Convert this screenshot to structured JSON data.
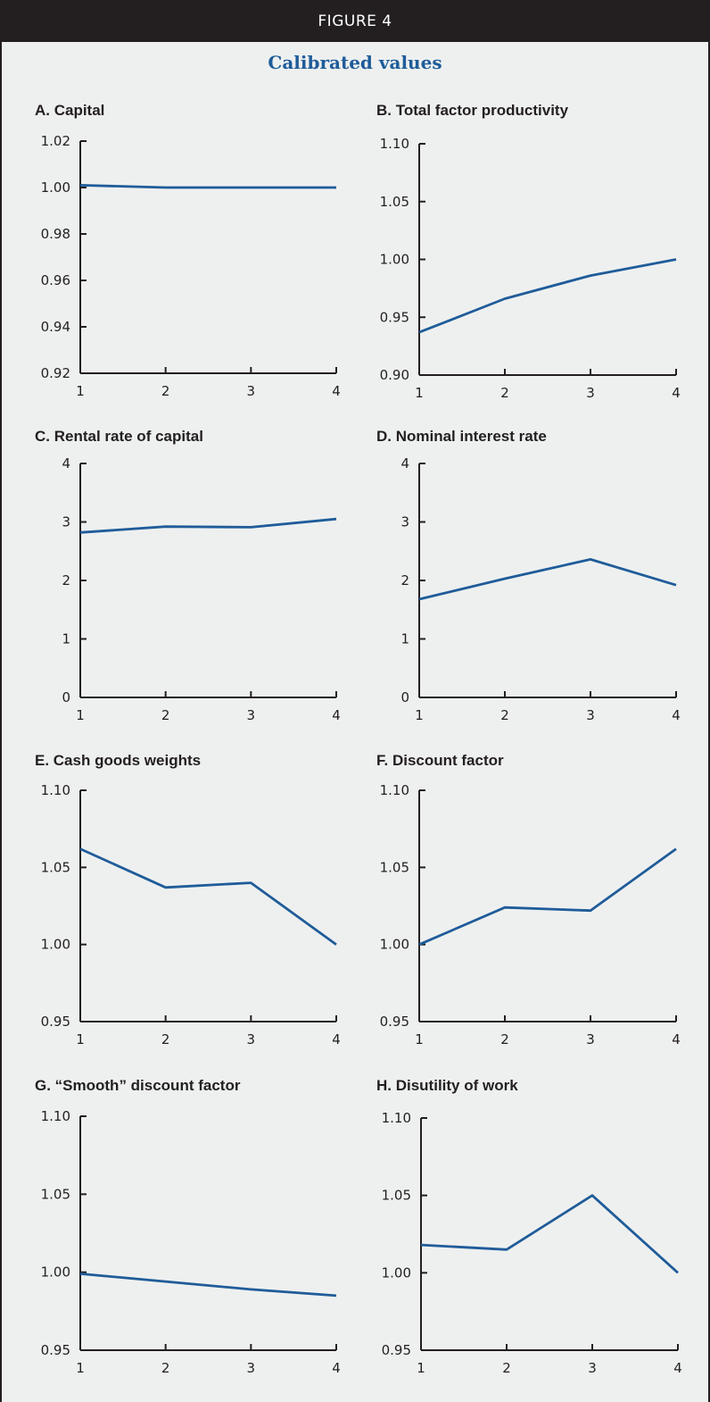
{
  "figure": {
    "label": "FIGURE 4",
    "title": "Calibrated values"
  },
  "colors": {
    "series": "#1f5c99",
    "banner": "#231f20",
    "background": "#eef0f0"
  },
  "chart_data": [
    {
      "id": "A",
      "type": "line",
      "title": "A. Capital",
      "x": [
        1,
        2,
        3,
        4
      ],
      "values": [
        1.001,
        1.0,
        1.0,
        1.0
      ],
      "ylim": [
        0.92,
        1.02
      ],
      "yticks": [
        "0.92",
        "0.94",
        "0.96",
        "0.98",
        "1.00",
        "1.02"
      ],
      "xticks": [
        "1",
        "2",
        "3",
        "4"
      ],
      "grid": false
    },
    {
      "id": "B",
      "type": "line",
      "title": "B. Total factor productivity",
      "x": [
        1,
        2,
        3,
        4
      ],
      "values": [
        0.937,
        0.966,
        0.986,
        1.0
      ],
      "ylim": [
        0.9,
        1.1
      ],
      "yticks": [
        "0.90",
        "0.95",
        "1.00",
        "1.05",
        "1.10"
      ],
      "xticks": [
        "1",
        "2",
        "3",
        "4"
      ],
      "grid": false
    },
    {
      "id": "C",
      "type": "line",
      "title": "C. Rental rate of capital",
      "x": [
        1,
        2,
        3,
        4
      ],
      "values": [
        2.82,
        2.92,
        2.91,
        3.05
      ],
      "ylim": [
        0,
        4
      ],
      "yticks": [
        "0",
        "1",
        "2",
        "3",
        "4"
      ],
      "xticks": [
        "1",
        "2",
        "3",
        "4"
      ],
      "grid": false
    },
    {
      "id": "D",
      "type": "line",
      "title": "D. Nominal interest rate",
      "x": [
        1,
        2,
        3,
        4
      ],
      "values": [
        1.68,
        2.03,
        2.36,
        1.92
      ],
      "ylim": [
        0,
        4
      ],
      "yticks": [
        "0",
        "1",
        "2",
        "3",
        "4"
      ],
      "xticks": [
        "1",
        "2",
        "3",
        "4"
      ],
      "grid": false
    },
    {
      "id": "E",
      "type": "line",
      "title": "E. Cash goods weights",
      "x": [
        1,
        2,
        3,
        4
      ],
      "values": [
        1.062,
        1.037,
        1.04,
        1.0
      ],
      "ylim": [
        0.95,
        1.1
      ],
      "yticks": [
        "0.95",
        "1.00",
        "1.05",
        "1.10"
      ],
      "xticks": [
        "1",
        "2",
        "3",
        "4"
      ],
      "grid": false
    },
    {
      "id": "F",
      "type": "line",
      "title": "F. Discount factor",
      "x": [
        1,
        2,
        3,
        4
      ],
      "values": [
        1.0,
        1.024,
        1.022,
        1.062
      ],
      "ylim": [
        0.95,
        1.1
      ],
      "yticks": [
        "0.95",
        "1.00",
        "1.05",
        "1.10"
      ],
      "xticks": [
        "1",
        "2",
        "3",
        "4"
      ],
      "grid": false
    },
    {
      "id": "G",
      "type": "line",
      "title": "G. “Smooth” discount factor",
      "x": [
        1,
        2,
        3,
        4
      ],
      "values": [
        0.999,
        0.994,
        0.989,
        0.985
      ],
      "ylim": [
        0.95,
        1.1
      ],
      "yticks": [
        "0.95",
        "1.00",
        "1.05",
        "1.10"
      ],
      "xticks": [
        "1",
        "2",
        "3",
        "4"
      ],
      "grid": false
    },
    {
      "id": "H",
      "type": "line",
      "title": "H. Disutility of work",
      "x": [
        1,
        2,
        3,
        4
      ],
      "values": [
        1.018,
        1.015,
        1.05,
        1.0
      ],
      "ylim": [
        0.95,
        1.1
      ],
      "yticks": [
        "0.95",
        "1.00",
        "1.05",
        "1.10"
      ],
      "xticks": [
        "1",
        "2",
        "3",
        "4"
      ],
      "grid": false
    }
  ]
}
